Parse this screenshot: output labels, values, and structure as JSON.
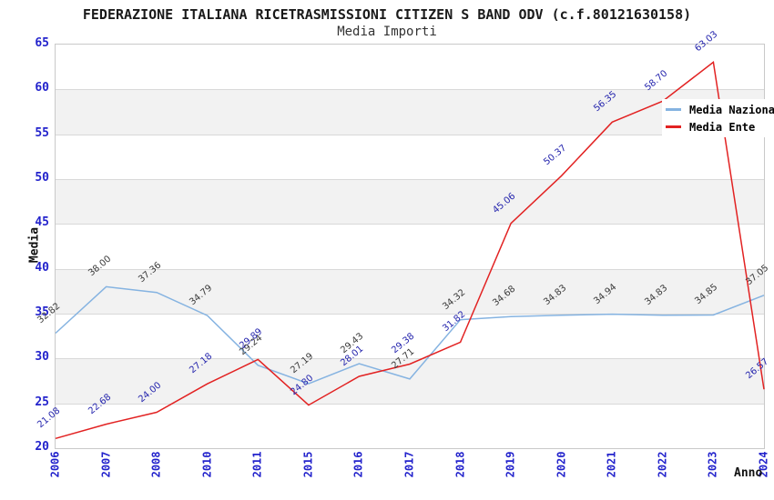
{
  "colors": {
    "tick_labels": "#2323cc",
    "gridline": "#d9d9d9",
    "band": "#f2f2f2",
    "frame": "#c9c9c9",
    "nazionale_line": "#85b3e1",
    "ente_line": "#e22222",
    "nazionale_data_label": "#3a3a3a",
    "ente_data_label": "#2424ad"
  },
  "chart_data": {
    "type": "line",
    "title": "FEDERAZIONE ITALIANA RICETRASMISSIONI CITIZEN S BAND ODV (c.f.80121630158)",
    "subtitle": "Media Importi",
    "xlabel": "Anno",
    "ylabel": "Media",
    "x": [
      "2006",
      "2007",
      "2008",
      "2010",
      "2011",
      "2015",
      "2016",
      "2017",
      "2018",
      "2019",
      "2020",
      "2021",
      "2022",
      "2023",
      "2024"
    ],
    "y_ticks": [
      65,
      60,
      55,
      50,
      45,
      40,
      35,
      30,
      25,
      20
    ],
    "ylim": [
      20,
      65
    ],
    "grid": "horizontal gridlines every 5 units, alternating white/gray bands",
    "legend_position": "top-right inside plot",
    "series": [
      {
        "name": "Media Nazionale",
        "color": "#85b3e1",
        "label_color": "#3a3a3a",
        "values": [
          32.82,
          38.0,
          37.36,
          34.79,
          29.24,
          27.19,
          29.43,
          27.71,
          34.32,
          34.68,
          34.83,
          34.94,
          34.83,
          34.85,
          37.05
        ]
      },
      {
        "name": "Media Ente",
        "color": "#e22222",
        "label_color": "#2424ad",
        "values": [
          21.08,
          22.68,
          24.0,
          27.18,
          29.89,
          24.8,
          28.01,
          29.38,
          31.82,
          45.06,
          50.37,
          56.35,
          58.7,
          63.03,
          26.57
        ]
      }
    ],
    "notes": "2022 Media Ente data label partially hidden behind legend; value estimated from line position."
  }
}
